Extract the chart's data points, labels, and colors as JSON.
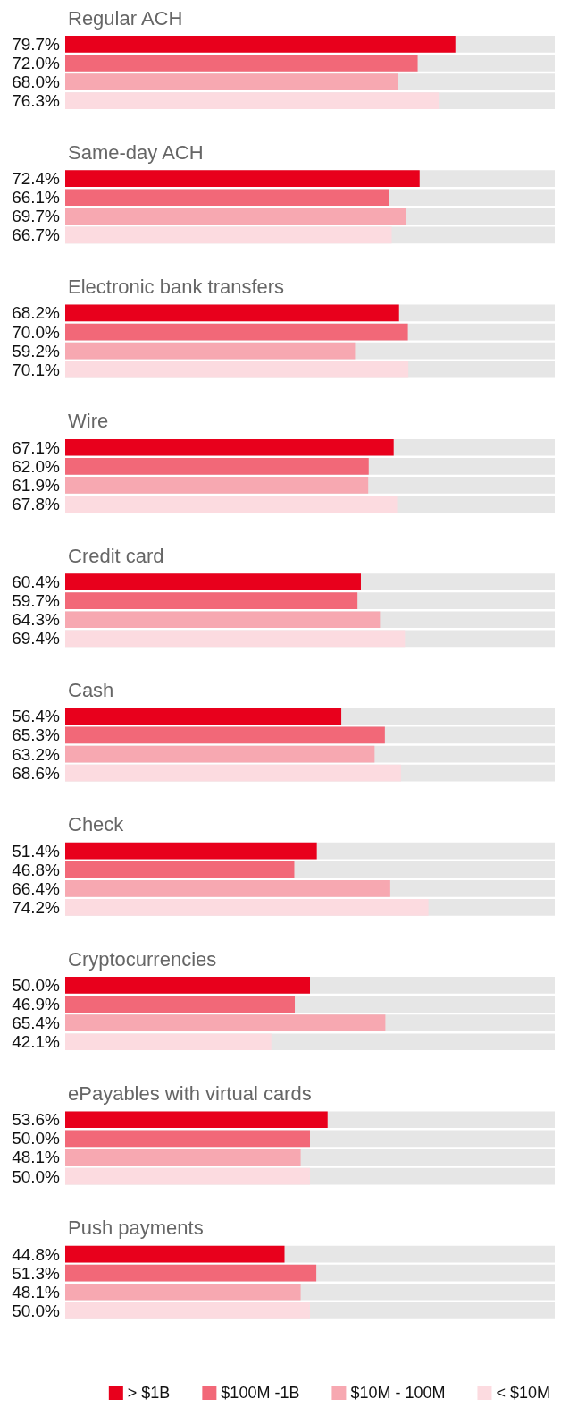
{
  "chart_data": {
    "type": "bar",
    "orientation": "horizontal",
    "categories": [
      "Regular ACH",
      "Same-day ACH",
      "Electronic bank transfers",
      "Wire",
      "Credit card",
      "Cash",
      "Check",
      "Cryptocurrencies",
      "ePayables with virtual cards",
      "Push payments"
    ],
    "xlim": [
      0,
      100
    ],
    "tick_labels": false,
    "legend": "bottom",
    "series": [
      {
        "name": "> $1B",
        "color": "#e8001c",
        "values": [
          79.7,
          72.4,
          68.2,
          67.1,
          60.4,
          56.4,
          51.4,
          50.0,
          53.6,
          44.8
        ],
        "value_labels": [
          "79.7%",
          "72.4%",
          "68.2%",
          "67.1%",
          "60.4%",
          "56.4%",
          "51.4%",
          "50.0%",
          "53.6%",
          "44.8%"
        ]
      },
      {
        "name": "$100M -1B",
        "color": "#f26878",
        "values": [
          72.0,
          66.1,
          70.0,
          62.0,
          59.7,
          65.3,
          46.8,
          46.9,
          50.0,
          51.3
        ],
        "value_labels": [
          "72.0%",
          "66.1%",
          "70.0%",
          "62.0%",
          "59.7%",
          "65.3%",
          "46.8%",
          "46.9%",
          "50.0%",
          "51.3%"
        ]
      },
      {
        "name": "$10M - 100M",
        "color": "#f7a8b1",
        "values": [
          68.0,
          69.7,
          59.2,
          61.9,
          64.3,
          63.2,
          66.4,
          65.4,
          48.1,
          48.1
        ],
        "value_labels": [
          "68.0%",
          "69.7%",
          "59.2%",
          "61.9%",
          "64.3%",
          "63.2%",
          "66.4%",
          "65.4%",
          "48.1%",
          "48.1%"
        ]
      },
      {
        "name": "< $10M",
        "color": "#fcdbe0",
        "values": [
          76.3,
          66.7,
          70.1,
          67.8,
          69.4,
          68.6,
          74.2,
          42.1,
          50.0,
          50.0
        ],
        "value_labels": [
          "76.3%",
          "66.7%",
          "70.1%",
          "67.8%",
          "69.4%",
          "68.6%",
          "74.2%",
          "42.1%",
          "50.0%",
          "50.0%"
        ]
      }
    ]
  }
}
